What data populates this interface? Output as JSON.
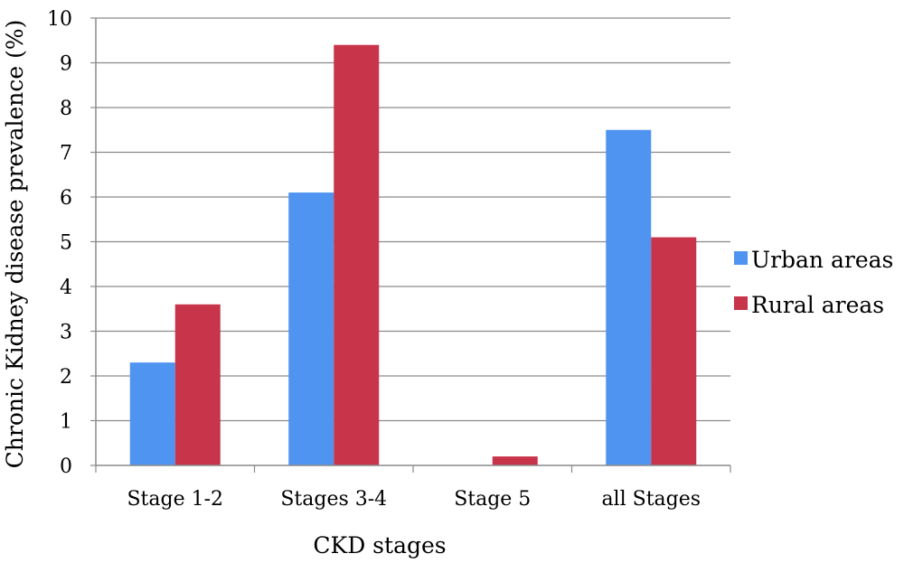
{
  "chart_data": {
    "type": "bar",
    "title": "",
    "xlabel": "CKD stages",
    "ylabel": "Chronic Kidney disease prevalence (%)",
    "categories": [
      "Stage 1-2",
      "Stages 3-4",
      "Stage 5",
      "all Stages"
    ],
    "series": [
      {
        "name": "Urban areas",
        "color": "#4F94F0",
        "values": [
          2.3,
          6.1,
          0,
          7.5
        ]
      },
      {
        "name": "Rural areas",
        "color": "#C8344A",
        "values": [
          3.6,
          9.4,
          0.2,
          5.1
        ]
      }
    ],
    "ylim": [
      0,
      10
    ],
    "yticks": [
      0,
      1,
      2,
      3,
      4,
      5,
      6,
      7,
      8,
      9,
      10
    ],
    "grid": true,
    "legend": "right"
  }
}
